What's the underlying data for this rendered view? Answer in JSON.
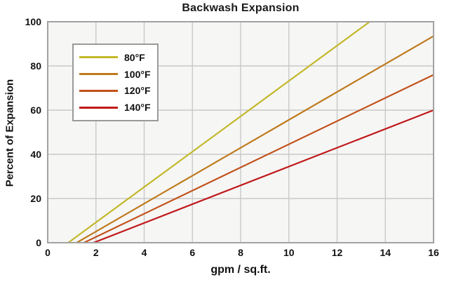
{
  "chart_data": {
    "type": "line",
    "title": "Backwash Expansion",
    "xlabel": "gpm / sq.ft.",
    "ylabel": "Percent of Expansion",
    "xlim": [
      0,
      16
    ],
    "ylim": [
      0,
      100
    ],
    "x_ticks": [
      0,
      2,
      4,
      6,
      8,
      10,
      12,
      14,
      16
    ],
    "y_ticks": [
      0,
      20,
      40,
      60,
      80,
      100
    ],
    "grid": true,
    "legend_position": "upper-left",
    "series": [
      {
        "name": "80°F",
        "color": "#c3b82a",
        "points": [
          [
            0.85,
            0
          ],
          [
            13.35,
            100
          ]
        ]
      },
      {
        "name": "100°F",
        "color": "#bf7a1c",
        "points": [
          [
            1.2,
            0
          ],
          [
            16,
            93.5
          ]
        ]
      },
      {
        "name": "120°F",
        "color": "#c2511a",
        "points": [
          [
            1.5,
            0
          ],
          [
            16,
            76
          ]
        ]
      },
      {
        "name": "140°F",
        "color": "#c01818",
        "points": [
          [
            1.9,
            0
          ],
          [
            16,
            60
          ]
        ]
      }
    ],
    "colors": {
      "plot_background": "#f6f6f5",
      "grid_line": "#c9c9c9",
      "plot_border": "#a2a2a2",
      "tick_text": "#111111"
    }
  }
}
